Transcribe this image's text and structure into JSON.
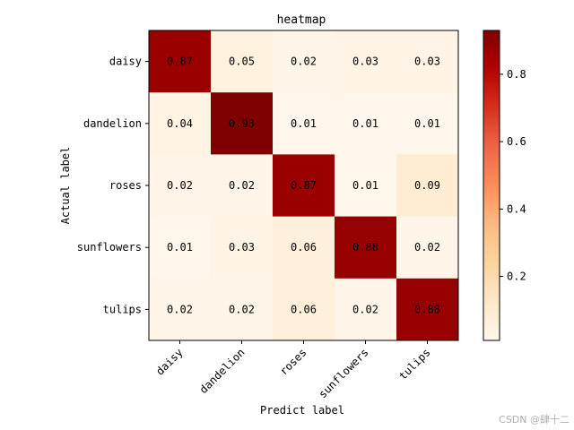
{
  "chart_data": {
    "type": "heatmap",
    "title": "heatmap",
    "xlabel": "Predict label",
    "ylabel": "Actual label",
    "x_categories": [
      "daisy",
      "dandelion",
      "roses",
      "sunflowers",
      "tulips"
    ],
    "y_categories": [
      "daisy",
      "dandelion",
      "roses",
      "sunflowers",
      "tulips"
    ],
    "values": [
      [
        0.87,
        0.05,
        0.02,
        0.03,
        0.03
      ],
      [
        0.04,
        0.93,
        0.01,
        0.01,
        0.01
      ],
      [
        0.02,
        0.02,
        0.87,
        0.01,
        0.09
      ],
      [
        0.01,
        0.03,
        0.06,
        0.88,
        0.02
      ],
      [
        0.02,
        0.02,
        0.06,
        0.02,
        0.88
      ]
    ],
    "cell_labels": [
      [
        "0.87",
        "0.05",
        "0.02",
        "0.03",
        "0.03"
      ],
      [
        "0.04",
        "0.93",
        "0.01",
        "0.01",
        "0.01"
      ],
      [
        "0.02",
        "0.02",
        "0.87",
        "0.01",
        "0.09"
      ],
      [
        "0.01",
        "0.03",
        "0.06",
        "0.88",
        "0.02"
      ],
      [
        "0.02",
        "0.02",
        "0.06",
        "0.02",
        "0.88"
      ]
    ],
    "colormap": "OrRd",
    "vmin": 0.01,
    "vmax": 0.93,
    "colorbar_ticks": [
      0.2,
      0.4,
      0.6,
      0.8
    ],
    "colorbar_tick_labels": [
      "0.2",
      "0.4",
      "0.6",
      "0.8"
    ],
    "grid": false,
    "legend": "colorbar-right"
  },
  "watermark": "CSDN @肆十二"
}
